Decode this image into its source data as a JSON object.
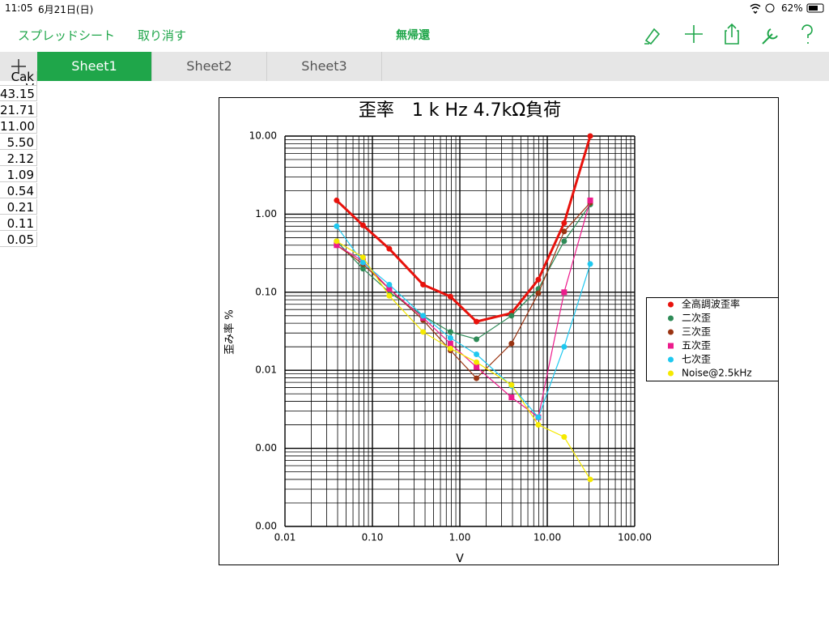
{
  "status_bar": {
    "time": "11:05",
    "date": "6月21日(日)",
    "battery": "62%"
  },
  "toolbar": {
    "back": "スプレッドシート",
    "undo": "取り消す",
    "title": "無帰還"
  },
  "tabs": {
    "sheets": [
      "Sheet1",
      "Sheet2",
      "Sheet3"
    ]
  },
  "table": {
    "header": "Cak V",
    "rows": [
      "43.15",
      "21.71",
      "11.00",
      "5.50",
      "2.12",
      "1.09",
      "0.54",
      "0.21",
      "0.11",
      "0.05"
    ]
  },
  "chart_data": {
    "type": "line",
    "title": "歪率　1 k Hz 4.7kΩ負荷",
    "x_label": "V",
    "y_label": "歪み率 %",
    "log_x": true,
    "log_y": true,
    "grid": true,
    "xlim": [
      0.01,
      100
    ],
    "xticks": [
      0.01,
      {
        "value": 0.1,
        "label": "0.10"
      },
      {
        "value": 1,
        "label": "1.00"
      },
      {
        "value": 10,
        "label": "10.00"
      },
      {
        "value": 100,
        "label": "100.00"
      }
    ],
    "ylim": [
      0.0001,
      10
    ],
    "yticks": [
      {
        "value": 0.0001,
        "label": "0.00"
      },
      {
        "value": 0.001,
        "label": "0.00"
      },
      0.01,
      {
        "value": 0.1,
        "label": "0.10"
      },
      {
        "value": 1,
        "label": "1.00"
      },
      {
        "value": 10,
        "label": "10.00"
      }
    ],
    "x": [
      0.039,
      0.078,
      0.156,
      0.38,
      0.78,
      1.55,
      3.9,
      7.9,
      15.6,
      31
    ],
    "legend": "right",
    "series": [
      {
        "name": "全高調波歪率",
        "color": "#e8120c",
        "marker": "circle",
        "line_width": 3,
        "values": [
          1.5,
          0.72,
          0.36,
          0.125,
          0.088,
          0.042,
          0.054,
          0.145,
          0.77,
          10
        ]
      },
      {
        "name": "二次歪",
        "color": "#2e8b57",
        "marker": "circle",
        "line_width": 1.2,
        "values": [
          0.45,
          0.2,
          0.1,
          0.05,
          0.031,
          0.025,
          0.05,
          0.11,
          0.45,
          1.33
        ]
      },
      {
        "name": "三次歪",
        "color": "#9a3412",
        "marker": "circle",
        "line_width": 1.2,
        "values": [
          0.4,
          0.23,
          0.11,
          0.044,
          0.018,
          0.0079,
          0.022,
          0.097,
          0.6,
          1.4
        ]
      },
      {
        "name": "五次歪",
        "color": "#ec1c8c",
        "marker": "square",
        "line_width": 1.2,
        "values": [
          0.4,
          0.25,
          0.11,
          0.047,
          0.022,
          0.011,
          0.0045,
          0.0025,
          0.1,
          1.5
        ]
      },
      {
        "name": "七次歪",
        "color": "#1ec8f0",
        "marker": "circle",
        "line_width": 1.2,
        "values": [
          0.7,
          0.24,
          0.125,
          0.05,
          0.026,
          0.016,
          0.0063,
          0.0025,
          0.02,
          0.23
        ]
      },
      {
        "name": "Noise@2.5kHz",
        "color": "#f5e900",
        "marker": "circle",
        "line_width": 1.2,
        "values": [
          0.45,
          0.28,
          0.09,
          0.031,
          0.019,
          0.0127,
          0.0065,
          0.002,
          0.0014,
          0.0004
        ]
      }
    ]
  }
}
